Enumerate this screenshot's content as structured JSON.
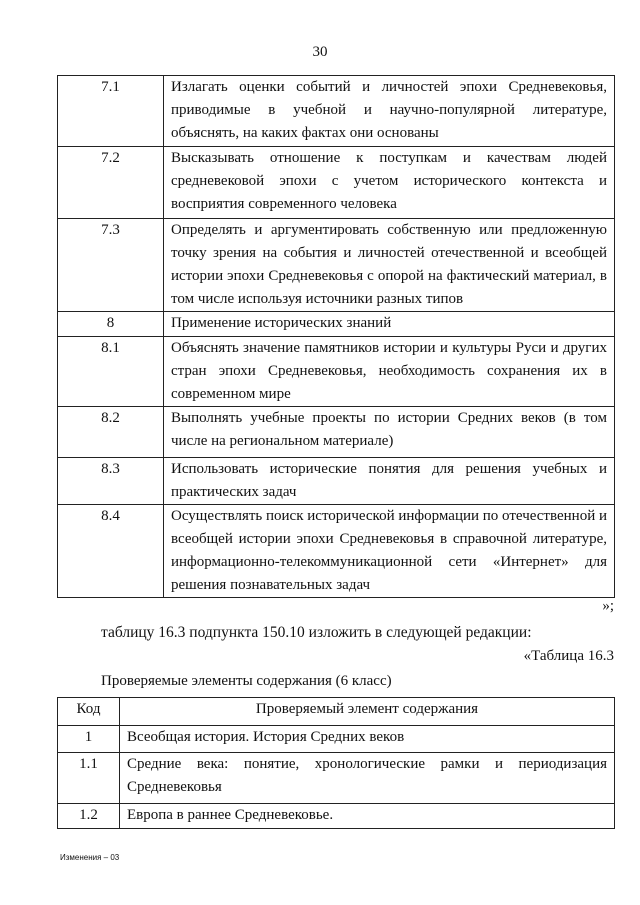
{
  "page_number": "30",
  "table1": {
    "rows": [
      {
        "code": "7.1",
        "text": "Излагать оценки событий и личностей эпохи Средневековья, приводимые в учебной и научно-популярной литературе, объяснять, на каких фактах они основаны"
      },
      {
        "code": "7.2",
        "text": "Высказывать отношение к поступкам и качествам людей средневековой эпохи с учетом исторического контекста и восприятия современного человека"
      },
      {
        "code": "7.3",
        "text": "Определять и аргументировать собственную или предложенную точку зрения на события и личностей отечественной и всеобщей истории эпохи Средневековья с опорой на фактический материал, в том числе используя источники разных типов"
      },
      {
        "code": "8",
        "text": "Применение исторических знаний"
      },
      {
        "code": "8.1",
        "text": "Объяснять значение памятников истории и культуры Руси и других стран эпохи Средневековья, необходимость сохранения их в современном мире"
      },
      {
        "code": "8.2",
        "text": "Выполнять учебные проекты по истории Средних веков (в том числе на региональном материале)"
      },
      {
        "code": "8.3",
        "text": "Использовать исторические понятия для решения учебных и практических задач"
      },
      {
        "code": "8.4",
        "text": "Осуществлять поиск исторической информации по отечественной и всеобщей истории эпохи Средневековья в справочной литературе, информационно-телекоммуникационной сети «Интернет» для решения познавательных задач"
      }
    ]
  },
  "closing_quote": "»;",
  "instruction": "таблицу 16.3 подпункта 150.10 изложить в следующей редакции:",
  "table_label": "«Таблица 16.3",
  "table_caption": "Проверяемые элементы содержания (6 класс)",
  "table2": {
    "headers": [
      "Код",
      "Проверяемый элемент содержания"
    ],
    "rows": [
      {
        "code": "1",
        "text": "Всеобщая история. История Средних веков"
      },
      {
        "code": "1.1",
        "text": "Средние века: понятие, хронологические рамки и периодизация Средневековья"
      },
      {
        "code": "1.2",
        "text": "Европа в раннее Средневековье."
      }
    ]
  },
  "footer": "Изменения – 03"
}
